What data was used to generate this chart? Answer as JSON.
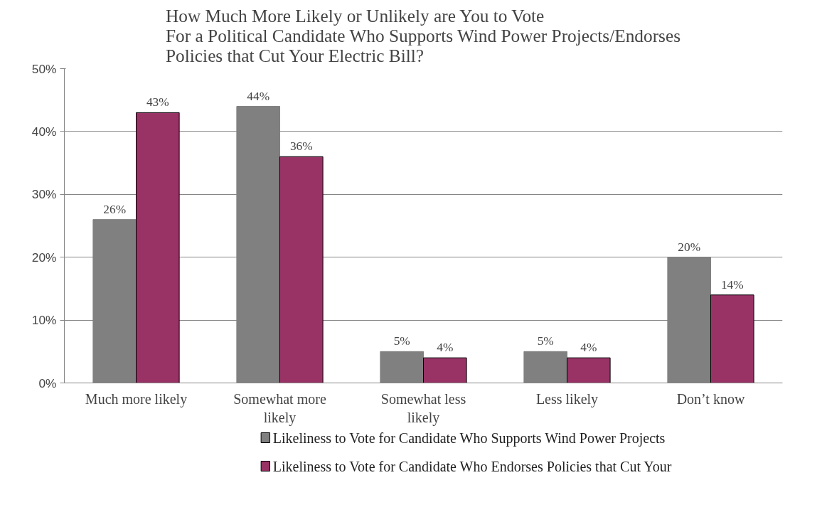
{
  "chart_data": {
    "type": "bar",
    "title": "How Much More Likely or Unlikely are You to Vote\nFor a Political Candidate Who Supports Wind Power Projects/Endorses\nPolicies that Cut Your Electric Bill?",
    "categories": [
      "Much more likely",
      "Somewhat more likely",
      "Somewhat less likely",
      "Less likely",
      "Don’t know"
    ],
    "series": [
      {
        "name": "Likeliness to Vote for Candidate Who Supports Wind Power Projects",
        "color": "#808080",
        "values": [
          26,
          44,
          5,
          5,
          20
        ],
        "value_labels": [
          "26%",
          "44%",
          "5%",
          "5%",
          "20%"
        ]
      },
      {
        "name": "Likeliness to Vote for Candidate Who Endorses Policies that Cut Your",
        "color": "#993366",
        "values": [
          43,
          36,
          4,
          4,
          14
        ],
        "value_labels": [
          "43%",
          "36%",
          "4%",
          "4%",
          "14%"
        ]
      }
    ],
    "ylim": [
      0,
      50
    ],
    "yticks": [
      {
        "value": 0,
        "label": "0%"
      },
      {
        "value": 10,
        "label": "10%"
      },
      {
        "value": 20,
        "label": "20%"
      },
      {
        "value": 30,
        "label": "30%"
      },
      {
        "value": 40,
        "label": "40%"
      },
      {
        "value": 50,
        "label": "50%"
      }
    ],
    "grid": "y",
    "legend": "bottom"
  }
}
